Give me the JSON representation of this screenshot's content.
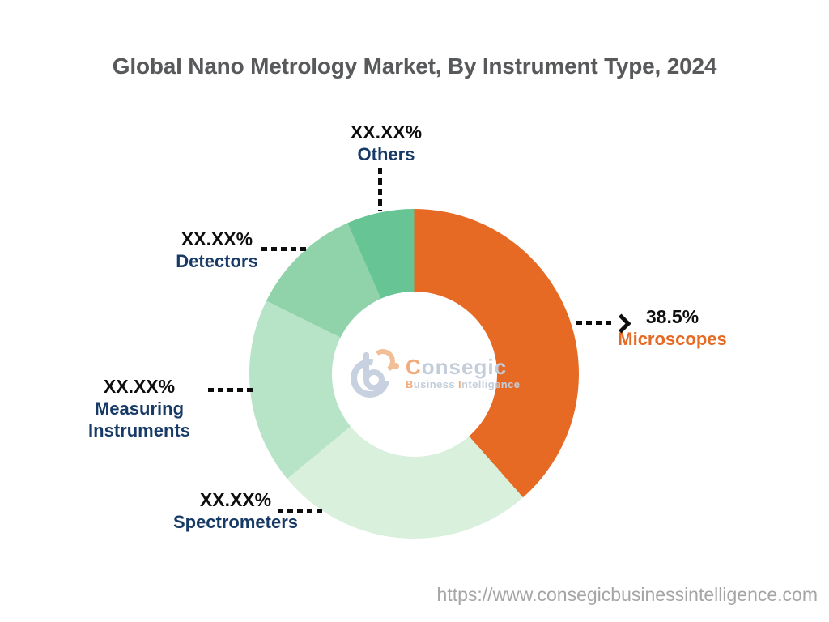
{
  "title": "Global Nano Metrology Market, By Instrument Type, 2024",
  "source_url": "https://www.consegicbusinessintelligence.com",
  "colors": {
    "accent-orange": "#E66A24",
    "label-navy": "#173A66",
    "value-black": "#0E0E0E",
    "title-gray": "#58595B",
    "url-gray": "#A5A5A5",
    "leader-black": "#0D0D0D"
  },
  "watermark": {
    "brand_initial": "C",
    "brand_rest": "onsegic",
    "tagline_b": "B",
    "tagline_usiness": "usiness ",
    "tagline_i": "I",
    "tagline_ntelligence": "ntelligence"
  },
  "chart_data": {
    "type": "pie",
    "subtype": "donut",
    "title": "Global Nano Metrology Market, By Instrument Type, 2024",
    "start_angle_deg": 0,
    "direction": "clockwise",
    "legend_position": "callout-labels",
    "segments": [
      {
        "name": "Microscopes",
        "display_value": "38.5%",
        "pct": 38.5,
        "color": "#E66A24"
      },
      {
        "name": "Spectrometers",
        "display_value": "XX.XX%",
        "pct": 25.5,
        "color": "#D8F0DC"
      },
      {
        "name": "Measuring Instruments",
        "display_value": "XX.XX%",
        "pct": 18.3,
        "color": "#B7E4C7"
      },
      {
        "name": "Detectors",
        "display_value": "XX.XX%",
        "pct": 11.1,
        "color": "#90D2AA"
      },
      {
        "name": "Others",
        "display_value": "XX.XX%",
        "pct": 6.6,
        "color": "#67C494"
      }
    ]
  }
}
